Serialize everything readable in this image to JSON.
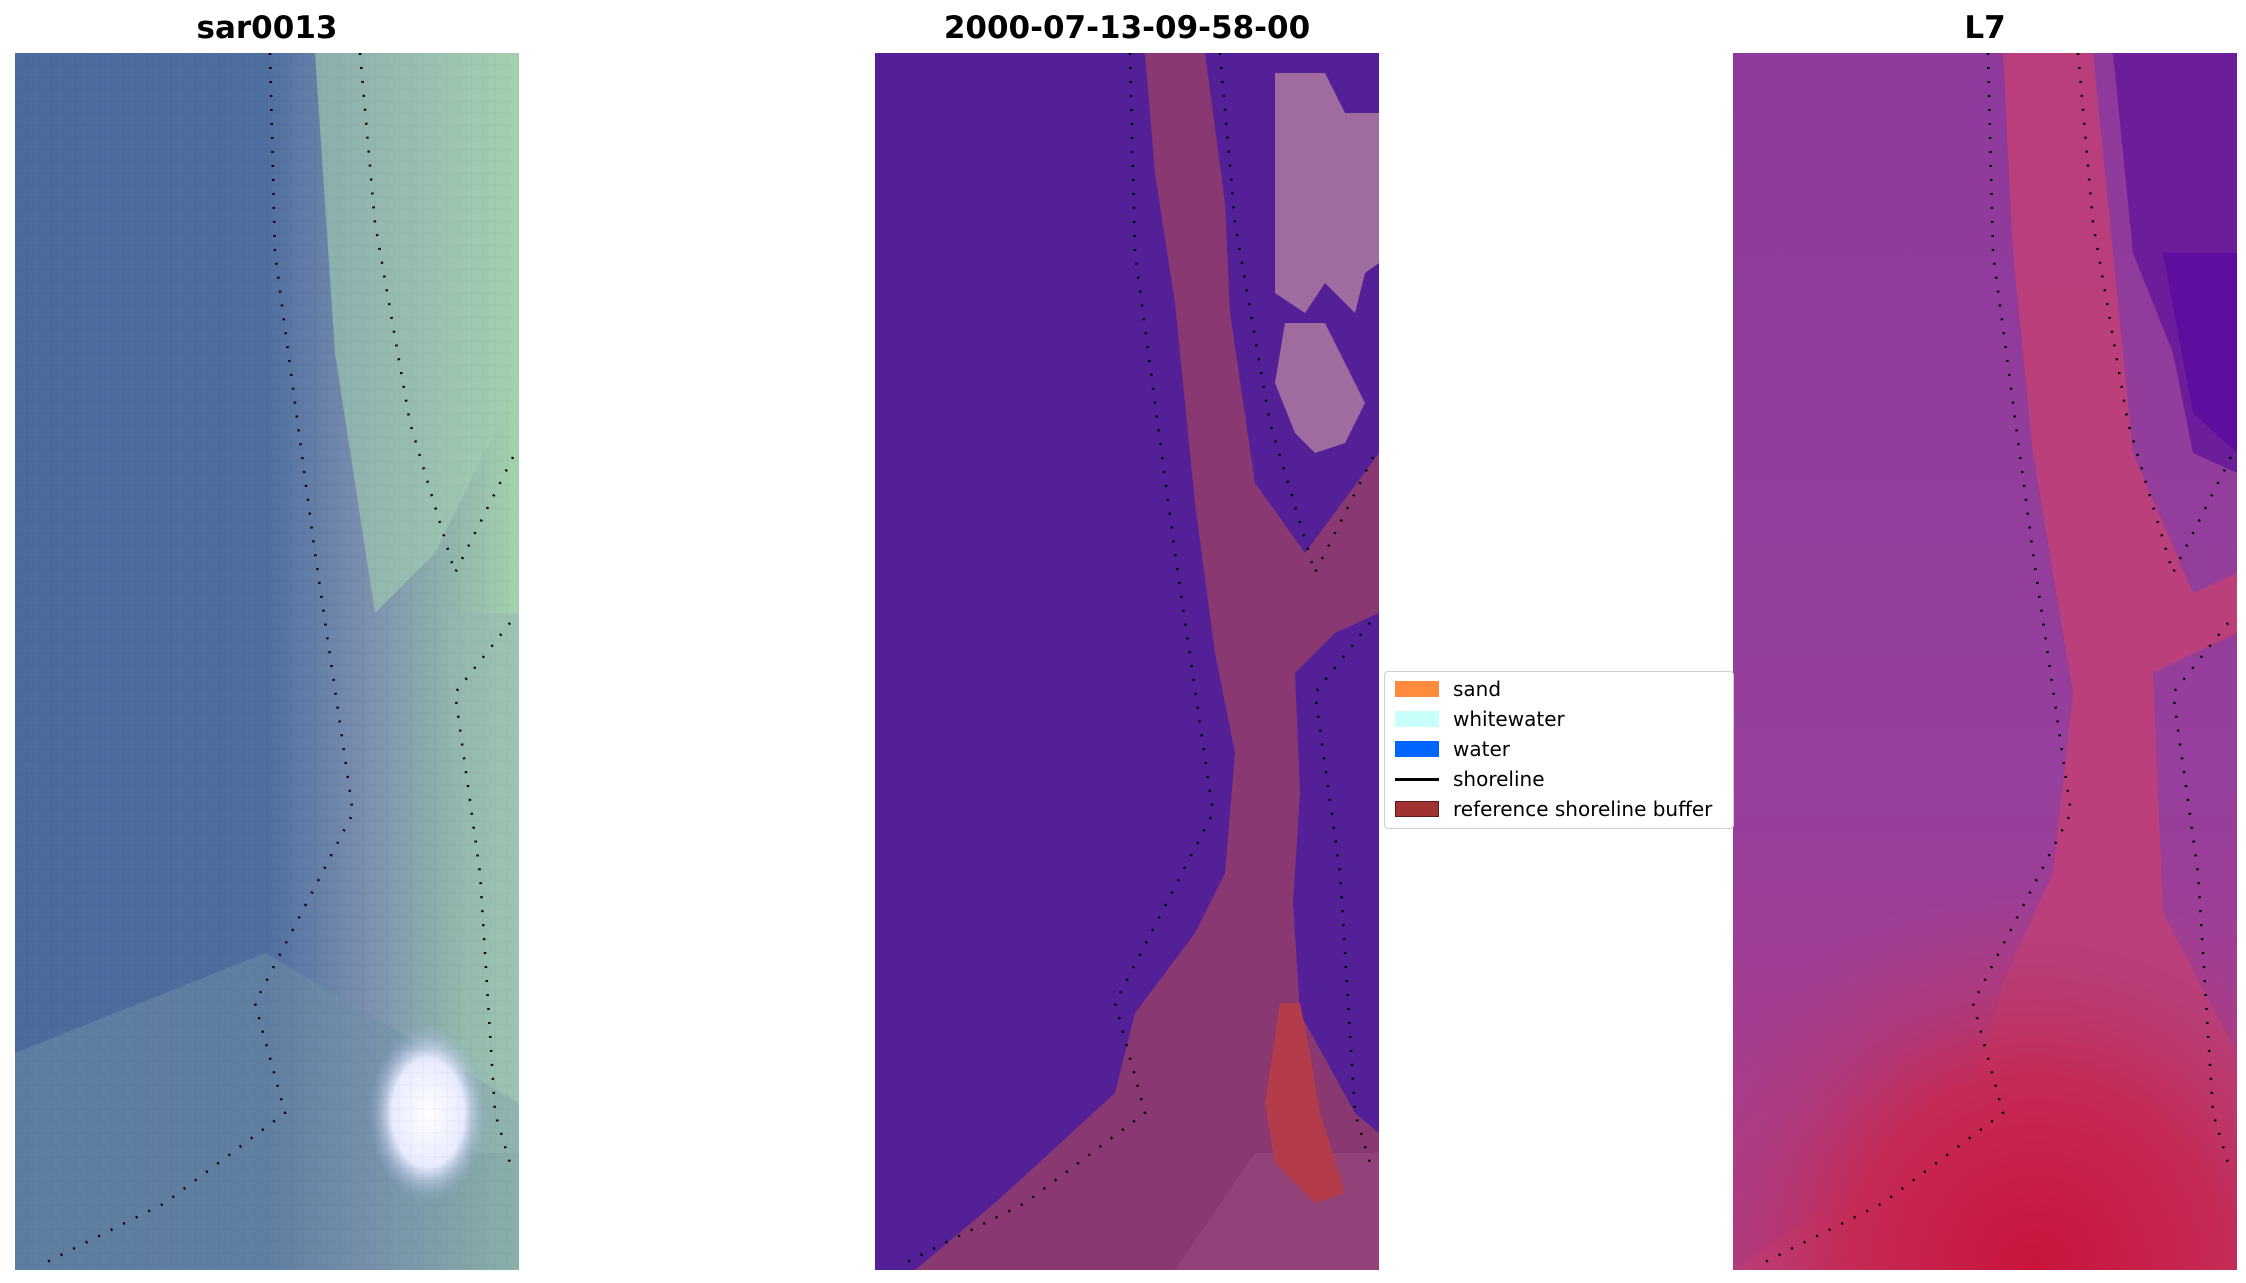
{
  "panels": [
    {
      "id": "rgb",
      "title": "sar0013"
    },
    {
      "id": "classified",
      "title": "2000-07-13-09-58-00"
    },
    {
      "id": "index",
      "title": "L7"
    }
  ],
  "legend": {
    "items": [
      {
        "label": "sand",
        "kind": "patch",
        "color": "#ff8c3c"
      },
      {
        "label": "whitewater",
        "kind": "patch",
        "color": "#c8fffa"
      },
      {
        "label": "water",
        "kind": "patch",
        "color": "#0064ff"
      },
      {
        "label": "shoreline",
        "kind": "line",
        "color": "#000000"
      },
      {
        "label": "reference shoreline buffer",
        "kind": "patch",
        "color": "#a03232"
      }
    ]
  },
  "colors": {
    "rgb_water": "#4c6b9e",
    "rgb_sand": "#a5d3ae",
    "rgb_whitewater": "#f5f7ff",
    "classified_water": "#532097",
    "classified_buffer": "#8a3871",
    "classified_sand": "#a06b9f",
    "classified_highlight": "#b43c4a",
    "index_low": "#8a3599",
    "index_high": "#c8143c",
    "index_darkest": "#5a0aa0"
  }
}
